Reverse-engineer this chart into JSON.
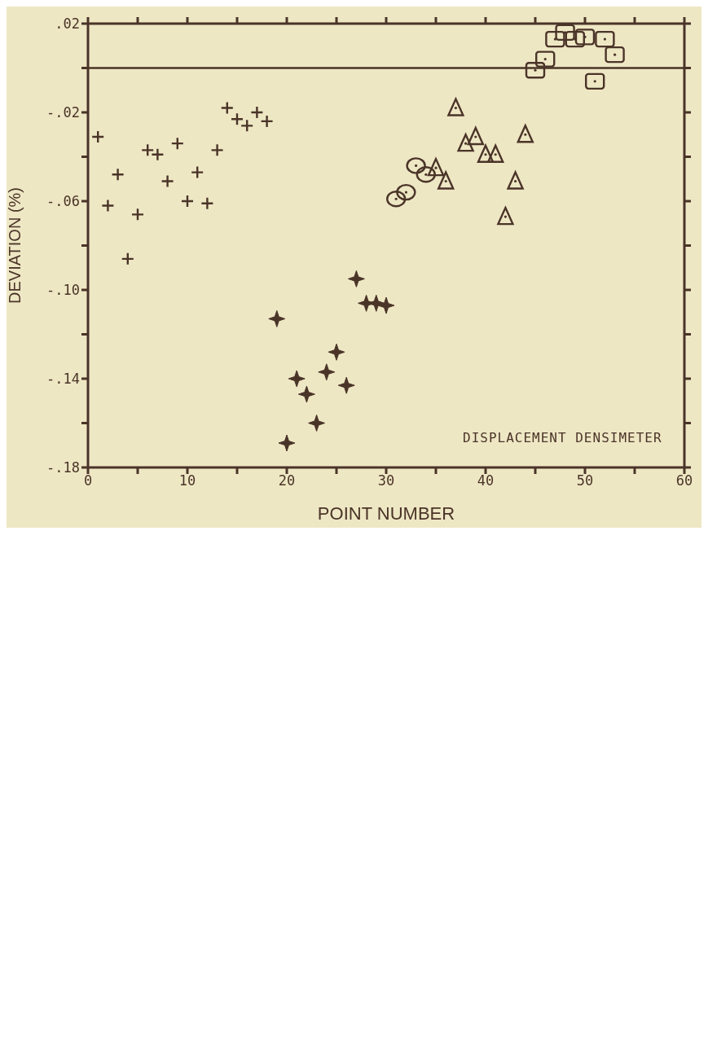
{
  "chart_data": {
    "type": "scatter",
    "xlabel": "POINT NUMBER",
    "ylabel": "DEVIATION (%)",
    "xlim": [
      0,
      60
    ],
    "ylim": [
      -0.18,
      0.02
    ],
    "xticks": [
      0,
      {
        "value": 5,
        "label": null
      },
      10,
      {
        "value": 15,
        "label": null
      },
      20,
      {
        "value": 25,
        "label": null
      },
      30,
      {
        "value": 35,
        "label": null
      },
      40,
      {
        "value": 45,
        "label": null
      },
      50,
      {
        "value": 55,
        "label": null
      },
      60
    ],
    "yticks": [
      {
        "value": 0.02,
        "label": ".02"
      },
      {
        "value": 0,
        "label": null
      },
      {
        "value": -0.02,
        "label": "-.02"
      },
      {
        "value": -0.04,
        "label": null
      },
      {
        "value": -0.06,
        "label": "-.06"
      },
      {
        "value": -0.08,
        "label": null
      },
      {
        "value": -0.1,
        "label": "-.10"
      },
      {
        "value": -0.12,
        "label": null
      },
      {
        "value": -0.14,
        "label": "-.14"
      },
      {
        "value": -0.16,
        "label": null
      },
      {
        "value": -0.18,
        "label": "-.18"
      }
    ],
    "ref_lines": [
      {
        "axis": "y",
        "value": 0,
        "label": null,
        "color": "#4a3428"
      }
    ],
    "annotations": [
      "DISPLACEMENT DENSIMETER"
    ],
    "series": [
      {
        "color": "#4a3428",
        "marker": "cross",
        "x": [
          1,
          2,
          3,
          4,
          5,
          6,
          7,
          8,
          9,
          10,
          11,
          12,
          13,
          14,
          15,
          16,
          17,
          18
        ],
        "values": [
          -0.031,
          -0.062,
          -0.048,
          -0.086,
          -0.066,
          -0.037,
          -0.039,
          -0.051,
          -0.034,
          -0.06,
          -0.047,
          -0.061,
          -0.037,
          -0.018,
          -0.023,
          -0.026,
          -0.02,
          -0.024
        ]
      },
      {
        "color": "#4a3428",
        "marker": "star",
        "x": [
          19,
          20,
          21,
          22,
          23,
          24,
          25,
          26,
          27,
          28,
          29,
          30
        ],
        "values": [
          -0.113,
          -0.169,
          -0.14,
          -0.147,
          -0.16,
          -0.137,
          -0.128,
          -0.143,
          -0.095,
          -0.106,
          -0.106,
          -0.107
        ]
      },
      {
        "color": "#4a3428",
        "marker": "circle",
        "x": [
          31,
          32,
          33,
          34
        ],
        "values": [
          -0.059,
          -0.056,
          -0.044,
          -0.048
        ]
      },
      {
        "color": "#4a3428",
        "marker": "triangle",
        "x": [
          35,
          36,
          37,
          38,
          39,
          40,
          41,
          42,
          43,
          44
        ],
        "values": [
          -0.045,
          -0.051,
          -0.018,
          -0.034,
          -0.031,
          -0.039,
          -0.039,
          -0.067,
          -0.051,
          -0.03
        ]
      },
      {
        "color": "#4a3428",
        "marker": "square",
        "x": [
          45,
          46,
          47,
          48,
          49,
          50,
          51,
          52,
          53
        ],
        "values": [
          -0.001,
          0.004,
          0.013,
          0.016,
          0.013,
          0.014,
          -0.006,
          0.013,
          0.006
        ]
      }
    ]
  }
}
